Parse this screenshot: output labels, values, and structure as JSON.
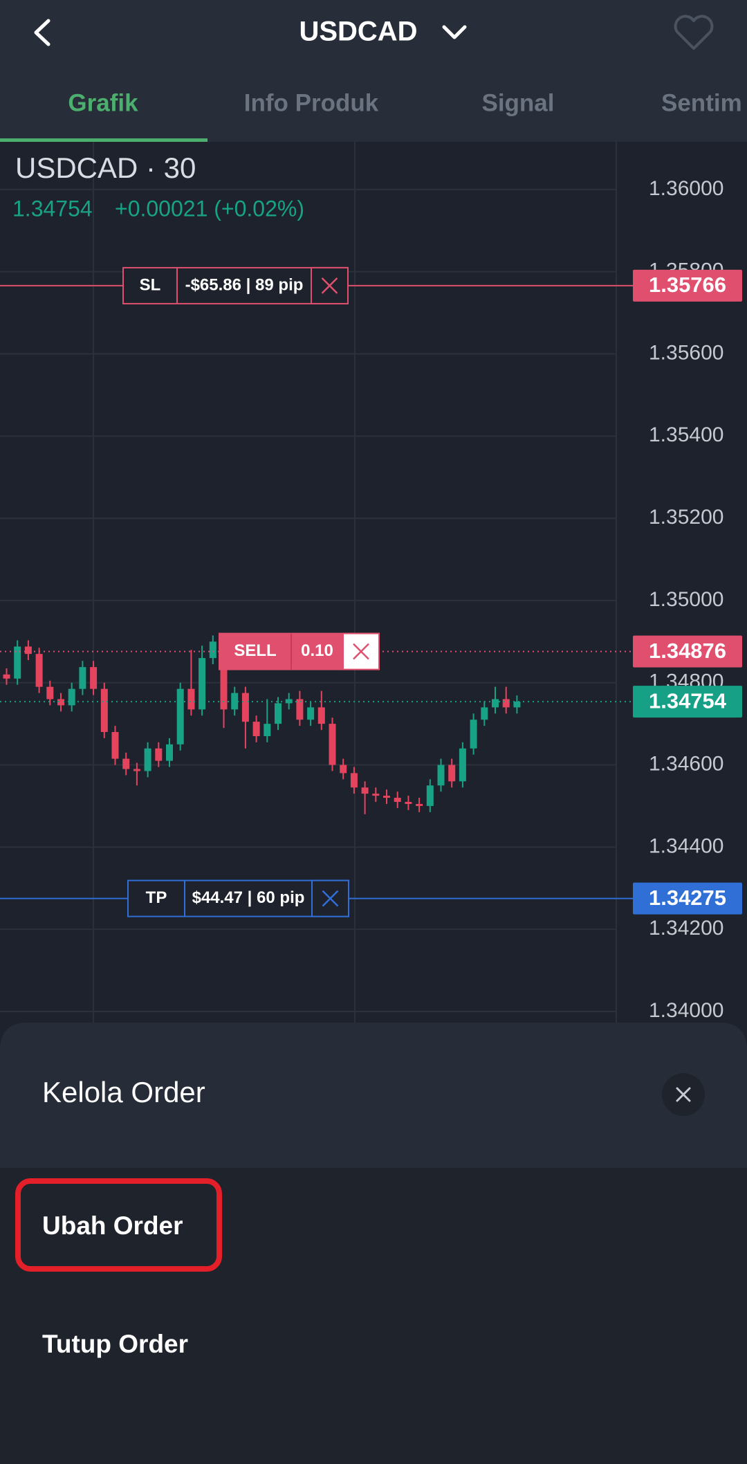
{
  "header": {
    "title": "USDCAD"
  },
  "tabs": [
    "Grafik",
    "Info Produk",
    "Signal",
    "Sentim"
  ],
  "chart_data": {
    "type": "candlestick",
    "title": "USDCAD · 30",
    "quote": 1.34754,
    "change": "+0.00021 (+0.02%)",
    "up_color": "#18a386",
    "down_color": "#e5445f",
    "ylim": [
      1.33973,
      1.36116
    ],
    "yticks": [
      {
        "value": 1.36,
        "label": "1.36000"
      },
      {
        "value": 1.358,
        "label": "1.35800"
      },
      {
        "value": 1.356,
        "label": "1.35600"
      },
      {
        "value": 1.354,
        "label": "1.35400"
      },
      {
        "value": 1.352,
        "label": "1.35200"
      },
      {
        "value": 1.35,
        "label": "1.35000"
      },
      {
        "value": 1.348,
        "label": "1.34800"
      },
      {
        "value": 1.346,
        "label": "1.34600"
      },
      {
        "value": 1.344,
        "label": "1.34400"
      },
      {
        "value": 1.342,
        "label": "1.34200"
      },
      {
        "value": 1.34,
        "label": "1.34000"
      }
    ],
    "grid": true,
    "candles": {
      "open": [
        1.3482,
        1.3481,
        1.34888,
        1.3487,
        1.3479,
        1.3476,
        1.34745,
        1.34785,
        1.34838,
        1.34785,
        1.3468,
        1.34615,
        1.3459,
        1.34585,
        1.3464,
        1.3461,
        1.3465,
        1.34785,
        1.34735,
        1.3486,
        1.349,
        1.34735,
        1.34775,
        1.34705,
        1.3467,
        1.347,
        1.3475,
        1.3476,
        1.3471,
        1.3474,
        1.347,
        1.346,
        1.3458,
        1.34545,
        1.3453,
        1.34525,
        1.3452,
        1.3451,
        1.34505,
        1.345,
        1.3455,
        1.346,
        1.3456,
        1.3464,
        1.3471,
        1.3474,
        1.3476,
        1.3474
      ],
      "high": [
        1.34835,
        1.34903,
        1.34903,
        1.34885,
        1.34805,
        1.34775,
        1.348,
        1.34853,
        1.34853,
        1.348,
        1.34695,
        1.3463,
        1.34605,
        1.34655,
        1.34655,
        1.34665,
        1.348,
        1.3488,
        1.3489,
        1.34915,
        1.34915,
        1.3479,
        1.3479,
        1.3472,
        1.3476,
        1.34765,
        1.34775,
        1.3478,
        1.34755,
        1.3478,
        1.34715,
        1.34615,
        1.34595,
        1.3456,
        1.34545,
        1.3454,
        1.34535,
        1.34525,
        1.3452,
        1.34565,
        1.34615,
        1.34615,
        1.34655,
        1.34725,
        1.34755,
        1.3479,
        1.3479,
        1.34769
      ],
      "low": [
        1.34795,
        1.34795,
        1.34855,
        1.34775,
        1.34745,
        1.3473,
        1.3473,
        1.3477,
        1.3477,
        1.34665,
        1.346,
        1.34575,
        1.3455,
        1.3457,
        1.34595,
        1.34595,
        1.34635,
        1.3472,
        1.3472,
        1.34845,
        1.3469,
        1.3472,
        1.3464,
        1.34655,
        1.34655,
        1.34685,
        1.34735,
        1.34695,
        1.34695,
        1.34685,
        1.34585,
        1.34565,
        1.3453,
        1.3448,
        1.3451,
        1.34505,
        1.34495,
        1.3449,
        1.34485,
        1.34485,
        1.34535,
        1.34545,
        1.34545,
        1.34625,
        1.34695,
        1.34725,
        1.34725,
        1.34725
      ],
      "close": [
        1.3481,
        1.34888,
        1.3487,
        1.3479,
        1.3476,
        1.34745,
        1.34785,
        1.34838,
        1.34785,
        1.3468,
        1.34615,
        1.3459,
        1.34585,
        1.3464,
        1.3461,
        1.3465,
        1.34785,
        1.34735,
        1.3486,
        1.349,
        1.34735,
        1.34775,
        1.34705,
        1.3467,
        1.347,
        1.3475,
        1.3476,
        1.3471,
        1.3474,
        1.347,
        1.346,
        1.3458,
        1.34545,
        1.3453,
        1.34525,
        1.3452,
        1.3451,
        1.34505,
        1.345,
        1.3455,
        1.346,
        1.3456,
        1.3464,
        1.3471,
        1.3474,
        1.3476,
        1.3474,
        1.34754
      ]
    },
    "price_lines": [
      {
        "label": "SL",
        "text": "-$65.86 | 89 pip",
        "price": 1.35766,
        "color": "#e0506e",
        "style": "solid"
      },
      {
        "label": "SELL",
        "text": "0.10",
        "price": 1.34876,
        "color": "#e0506e",
        "style": "dotted"
      },
      {
        "price": 1.34754,
        "color": "#16a085",
        "style": "dotted"
      },
      {
        "label": "TP",
        "text": "$44.47 | 60 pip",
        "price": 1.34275,
        "color": "#2f6fd6",
        "style": "solid"
      }
    ]
  },
  "sheet": {
    "title": "Kelola Order",
    "options": [
      "Ubah Order",
      "Tutup Order"
    ]
  }
}
